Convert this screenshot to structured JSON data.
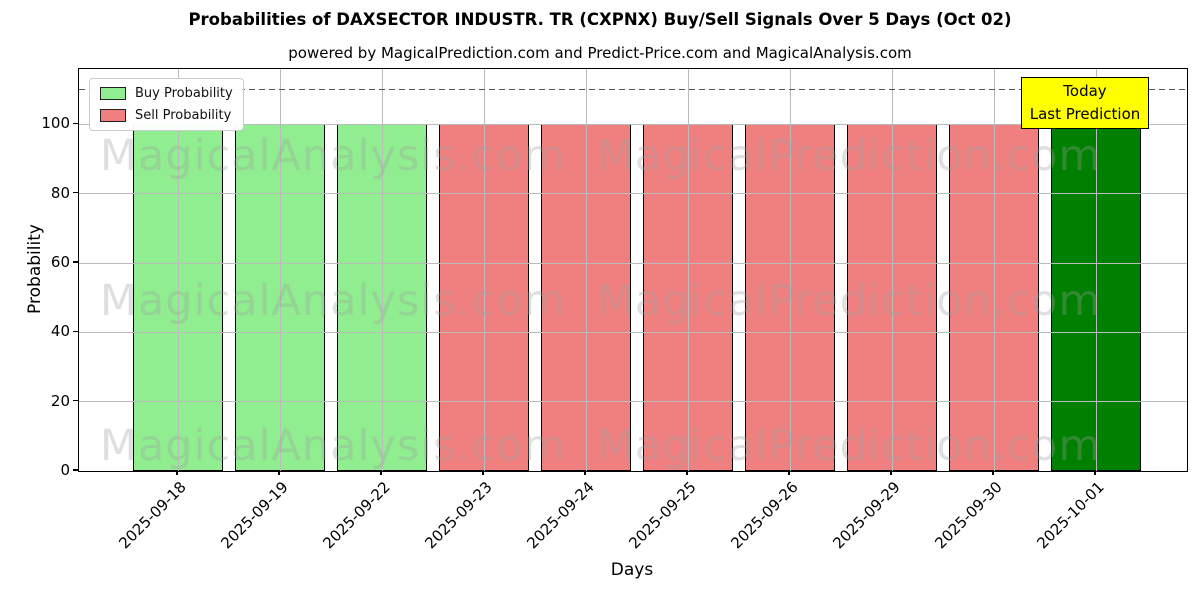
{
  "header": {
    "title": "Probabilities of DAXSECTOR INDUSTR. TR (CXPNX) Buy/Sell Signals Over 5 Days (Oct 02)",
    "subtitle": "powered by MagicalPrediction.com and Predict-Price.com and MagicalAnalysis.com"
  },
  "chart_data": {
    "type": "bar",
    "title": "Probabilities of DAXSECTOR INDUSTR. TR (CXPNX) Buy/Sell Signals Over 5 Days (Oct 02)",
    "xlabel": "Days",
    "ylabel": "Probability",
    "ylim": [
      0,
      116
    ],
    "yticks": [
      0,
      20,
      40,
      60,
      80,
      100
    ],
    "grid": true,
    "dashed_line_y": 110,
    "categories": [
      "2025-09-18",
      "2025-09-19",
      "2025-09-22",
      "2025-09-23",
      "2025-09-24",
      "2025-09-25",
      "2025-09-26",
      "2025-09-29",
      "2025-09-30",
      "2025-10-01"
    ],
    "values": [
      100,
      100,
      100,
      100,
      100,
      100,
      100,
      100,
      100,
      100
    ],
    "signals": [
      "buy",
      "buy",
      "buy",
      "sell",
      "sell",
      "sell",
      "sell",
      "sell",
      "sell",
      "today"
    ],
    "legend_position": "upper left",
    "legend": [
      {
        "label": "Buy Probability",
        "color_key": "buy"
      },
      {
        "label": "Sell Probability",
        "color_key": "sell"
      }
    ]
  },
  "annotation": {
    "line1": "Today",
    "line2": "Last Prediction"
  },
  "watermark": {
    "left_text": "MagicalAnalysis.com",
    "right_text": "MagicalPrediction.com"
  },
  "colors": {
    "buy": "#90EE90",
    "sell": "#F08080",
    "today": "#008000",
    "annotation_bg": "#FFFF00",
    "dashed_line": "#555555",
    "grid_line": "#BBBBBB",
    "watermark": "#9E9E9E",
    "bar_edge": "#000000"
  }
}
